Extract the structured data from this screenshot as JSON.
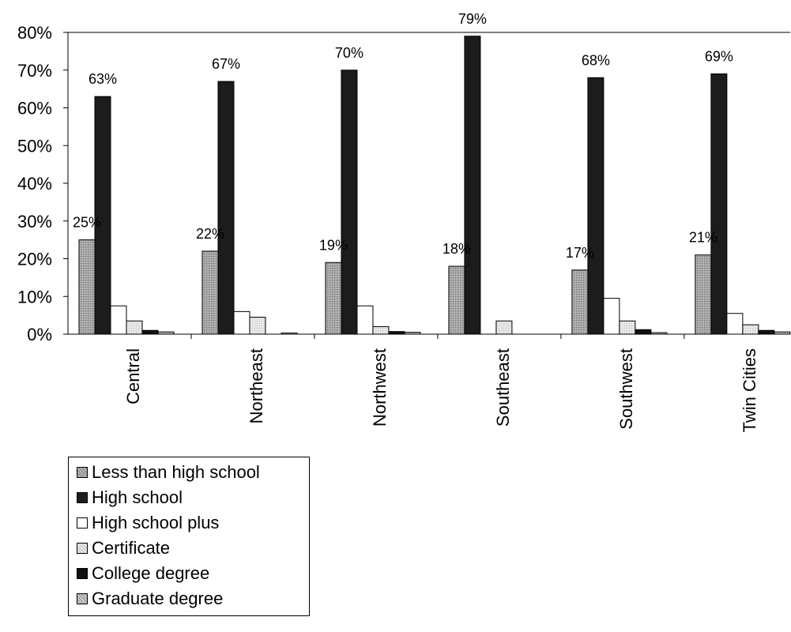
{
  "chart_data": {
    "type": "bar",
    "categories": [
      "Central",
      "Northeast",
      "Northwest",
      "Southeast",
      "Southwest",
      "Twin Cities"
    ],
    "ylim": [
      0,
      80
    ],
    "yticks": [
      "0%",
      "10%",
      "20%",
      "30%",
      "40%",
      "50%",
      "60%",
      "70%",
      "80%"
    ],
    "series": [
      {
        "name": "Less than high school",
        "values": [
          25,
          22,
          19,
          18,
          17,
          21
        ],
        "color": "#9a9a9a"
      },
      {
        "name": "High school",
        "values": [
          63,
          67,
          70,
          79,
          68,
          69
        ],
        "color": "#1c1c1c"
      },
      {
        "name": "High school plus",
        "values": [
          7.5,
          6,
          7.5,
          0,
          9.5,
          5.5
        ],
        "color": "#ffffff"
      },
      {
        "name": "Certificate",
        "values": [
          3.5,
          4.5,
          2,
          3.5,
          3.5,
          2.5
        ],
        "color": "#e0e0e0"
      },
      {
        "name": "College degree",
        "values": [
          1,
          0,
          0.7,
          0,
          1.2,
          1
        ],
        "color": "#111111"
      },
      {
        "name": "Graduate degree",
        "values": [
          0.6,
          0.3,
          0.5,
          0,
          0.4,
          0.6
        ],
        "color": "#bdbdbd"
      }
    ],
    "data_labels": [
      {
        "category": "Central",
        "series": "Less than high school",
        "text": "25%"
      },
      {
        "category": "Central",
        "series": "High school",
        "text": "63%"
      },
      {
        "category": "Northeast",
        "series": "Less than high school",
        "text": "22%"
      },
      {
        "category": "Northeast",
        "series": "High school",
        "text": "67%"
      },
      {
        "category": "Northwest",
        "series": "Less than high school",
        "text": "19%"
      },
      {
        "category": "Northwest",
        "series": "High school",
        "text": "70%"
      },
      {
        "category": "Southeast",
        "series": "Less than high school",
        "text": "18%"
      },
      {
        "category": "Southeast",
        "series": "High school",
        "text": "79%"
      },
      {
        "category": "Southwest",
        "series": "Less than high school",
        "text": "17%"
      },
      {
        "category": "Southwest",
        "series": "High school",
        "text": "68%"
      },
      {
        "category": "Twin Cities",
        "series": "Less than high school",
        "text": "21%"
      },
      {
        "category": "Twin Cities",
        "series": "High school",
        "text": "69%"
      }
    ],
    "grid": false,
    "legend_position": "bottom-left"
  }
}
